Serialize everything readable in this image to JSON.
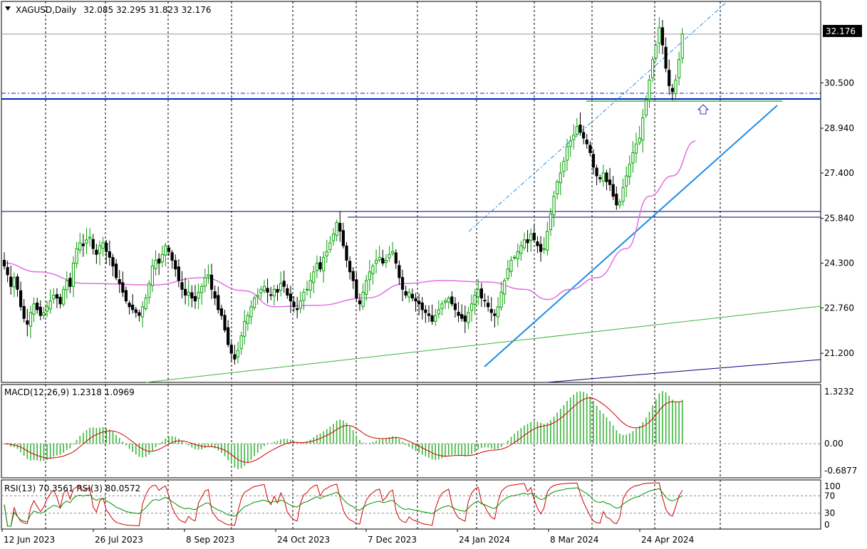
{
  "chart_data": {
    "type": "candlestick",
    "symbol": "XAGUSD,Daily",
    "ohlc_header": "32.085 32.295 31.823 32.176",
    "last_price": "32.176",
    "price_axis": {
      "ylim": [
        20.2,
        33.3
      ],
      "ticks": [
        "30.500",
        "28.940",
        "27.400",
        "25.840",
        "24.300",
        "22.760",
        "21.200"
      ]
    },
    "x_ticks": [
      "12 Jun 2023",
      "26 Jul 2023",
      "8 Sep 2023",
      "24 Oct 2023",
      "7 Dec 2023",
      "24 Jan 2024",
      "8 Mar 2024",
      "24 Apr 2024"
    ],
    "closes": [
      24.2,
      23.9,
      23.5,
      23.8,
      23.4,
      22.8,
      22.4,
      22.2,
      22.6,
      22.9,
      22.7,
      22.5,
      22.6,
      22.8,
      23.0,
      23.2,
      23.1,
      22.9,
      23.4,
      23.7,
      23.5,
      24.3,
      24.8,
      25.0,
      24.9,
      25.1,
      25.2,
      24.8,
      24.6,
      24.9,
      25.0,
      24.7,
      24.5,
      24.2,
      23.8,
      23.6,
      23.3,
      23.0,
      22.8,
      22.7,
      22.6,
      22.5,
      22.8,
      23.1,
      23.6,
      24.2,
      24.4,
      24.3,
      24.6,
      24.9,
      24.7,
      24.4,
      24.1,
      23.7,
      23.4,
      23.2,
      23.3,
      23.1,
      23.0,
      23.3,
      23.5,
      23.8,
      23.9,
      23.4,
      23.1,
      22.7,
      22.5,
      22.0,
      21.5,
      21.2,
      21.0,
      21.3,
      21.8,
      22.3,
      22.5,
      22.8,
      23.1,
      23.2,
      23.4,
      23.5,
      23.3,
      23.2,
      23.4,
      23.3,
      23.6,
      23.5,
      23.2,
      23.0,
      22.8,
      22.7,
      23.0,
      23.3,
      23.4,
      23.7,
      24.0,
      24.3,
      24.1,
      24.5,
      24.7,
      25.0,
      25.3,
      25.7,
      25.4,
      24.9,
      24.4,
      24.0,
      23.7,
      23.1,
      22.9,
      23.3,
      23.7,
      24.0,
      24.2,
      24.4,
      24.5,
      24.3,
      24.4,
      24.6,
      24.7,
      24.3,
      23.8,
      23.4,
      23.2,
      23.3,
      23.1,
      23.0,
      22.9,
      22.7,
      22.6,
      22.5,
      22.3,
      22.5,
      22.7,
      22.9,
      23.0,
      23.1,
      22.9,
      22.7,
      22.5,
      22.4,
      22.3,
      22.6,
      22.9,
      23.2,
      23.4,
      23.1,
      23.0,
      22.8,
      22.6,
      22.5,
      22.8,
      23.3,
      23.7,
      24.1,
      24.4,
      24.5,
      24.7,
      24.9,
      25.1,
      25.0,
      25.3,
      25.1,
      24.9,
      24.7,
      24.8,
      25.4,
      26.0,
      26.6,
      27.1,
      27.4,
      27.8,
      28.3,
      28.5,
      28.7,
      29.0,
      28.8,
      28.6,
      28.4,
      28.1,
      27.6,
      27.3,
      27.2,
      27.4,
      27.1,
      27.0,
      26.6,
      26.3,
      26.4,
      26.9,
      27.3,
      27.7,
      28.1,
      28.4,
      28.6,
      29.3,
      29.9,
      30.6,
      31.3,
      31.8,
      32.4,
      31.8,
      31.0,
      30.4,
      30.2,
      30.6,
      31.3,
      32.18
    ],
    "ma": {
      "name": "",
      "points": [
        [
          0,
          24.3
        ],
        [
          10,
          24.0
        ],
        [
          25,
          23.6
        ],
        [
          45,
          23.55
        ],
        [
          60,
          23.8
        ],
        [
          73,
          23.35
        ],
        [
          82,
          22.8
        ],
        [
          95,
          22.85
        ],
        [
          110,
          23.1
        ],
        [
          122,
          23.6
        ],
        [
          133,
          23.7
        ],
        [
          147,
          23.65
        ],
        [
          158,
          23.4
        ],
        [
          165,
          23.05
        ],
        [
          172,
          23.4
        ],
        [
          180,
          23.8
        ],
        [
          189,
          24.8
        ],
        [
          196,
          26.6
        ],
        [
          203,
          27.3
        ],
        [
          210,
          28.5
        ]
      ]
    },
    "macd": {
      "label": "MACD(12,26,9) 1.2318 1.0969",
      "ylim": [
        -0.82,
        1.45
      ],
      "ticks": [
        "1.3232",
        "0.00",
        "-0.6877"
      ]
    },
    "rsi": {
      "label": "RSI(13) 70.3561  RSI(3) 80.0572",
      "ylim": [
        0,
        100
      ],
      "ticks": [
        "100",
        "70",
        "30",
        "0"
      ]
    },
    "colors": {
      "bull": "#00a000",
      "bear": "#000000",
      "ma": "#e070e0",
      "macd_hist": "#3cb43c",
      "signal": "#d00000",
      "trend": "#1e8ce6",
      "level": "#0020c0"
    }
  }
}
